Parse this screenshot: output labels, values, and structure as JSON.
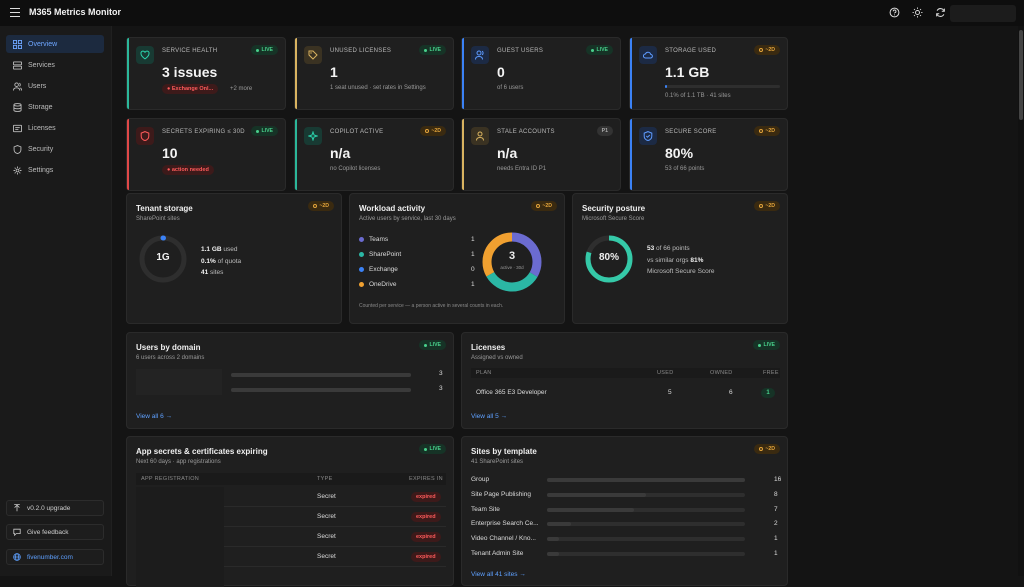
{
  "app": {
    "title": "M365 Metrics Monitor"
  },
  "sidebar": {
    "items": [
      {
        "label": "Overview",
        "icon": "grid-icon"
      },
      {
        "label": "Services",
        "icon": "server-icon"
      },
      {
        "label": "Users",
        "icon": "users-icon"
      },
      {
        "label": "Storage",
        "icon": "database-icon"
      },
      {
        "label": "Licenses",
        "icon": "license-icon"
      },
      {
        "label": "Security",
        "icon": "shield-icon"
      },
      {
        "label": "Settings",
        "icon": "gear-icon"
      }
    ],
    "upgrade": "v0.2.0 upgrade",
    "feedback": "Give feedback",
    "site": "fivenumber.com"
  },
  "kpis": [
    {
      "label": "SERVICE HEALTH",
      "value": "3 issues",
      "badge": "LIVE",
      "pill": "● Exchange Onl...",
      "extra": "+2 more",
      "accent": "#2bb79a"
    },
    {
      "label": "UNUSED LICENSES",
      "value": "1",
      "badge": "LIVE",
      "sub": "1 seat unused · set rates in Settings",
      "accent": "#d9b360"
    },
    {
      "label": "GUEST USERS",
      "value": "0",
      "badge": "LIVE",
      "sub": "of 6 users",
      "accent": "#3b82f6"
    },
    {
      "label": "STORAGE USED",
      "value": "1.1 GB",
      "badge": "~2D",
      "sub": "0.1% of 1.1 TB · 41 sites",
      "accent": "#3b82f6"
    },
    {
      "label": "SECRETS EXPIRING ≤ 30D",
      "value": "10",
      "badge": "LIVE",
      "pill": "● action needed",
      "accent": "#e04848"
    },
    {
      "label": "COPILOT ACTIVE",
      "value": "n/a",
      "badge": "~2D",
      "sub": "no Copilot licenses",
      "accent": "#2bb79a"
    },
    {
      "label": "STALE ACCOUNTS",
      "value": "n/a",
      "badge": "P1",
      "sub": "needs Entra ID P1",
      "accent": "#d9b360"
    },
    {
      "label": "SECURE SCORE",
      "value": "80%",
      "badge": "~2D",
      "sub": "53 of 66 points",
      "accent": "#3b82f6"
    }
  ],
  "storage_card": {
    "title": "Tenant storage",
    "sub": "SharePoint sites",
    "badge": "~2D",
    "donut": "1G",
    "used_val": "1.1 GB",
    "used_lbl": " used",
    "quota_val": "0.1%",
    "quota_lbl": " of quota",
    "sites_val": "41",
    "sites_lbl": " sites",
    "fraction": 0.001
  },
  "workload": {
    "title": "Workload activity",
    "sub": "Active users by service, last 30 days",
    "badge": "~2D",
    "services": [
      {
        "name": "Teams",
        "value": "1",
        "color": "#6b6bd0"
      },
      {
        "name": "SharePoint",
        "value": "1",
        "color": "#2bb7a5"
      },
      {
        "name": "Exchange",
        "value": "0",
        "color": "#3b82f6"
      },
      {
        "name": "OneDrive",
        "value": "1",
        "color": "#f0a030"
      }
    ],
    "center": "3",
    "center_sub": "active · 30d",
    "note": "Counted per service — a person active in several counts in each."
  },
  "posture": {
    "title": "Security posture",
    "sub": "Microsoft Secure Score",
    "badge": "~2D",
    "center": "80%",
    "line1a": "53",
    "line1b": " of 66 points",
    "line2a": "vs similar orgs ",
    "line2b": "81%",
    "line3": "Microsoft Secure Score",
    "fraction": 0.8
  },
  "domains": {
    "title": "Users by domain",
    "sub": "6 users across 2 domains",
    "badge": "LIVE",
    "rows": [
      {
        "value": "3",
        "fraction": 1
      },
      {
        "value": "3",
        "fraction": 1
      }
    ],
    "link": "View all 6 →"
  },
  "licenses": {
    "title": "Licenses",
    "sub": "Assigned vs owned",
    "badge": "LIVE",
    "headers": [
      "PLAN",
      "USED",
      "OWNED",
      "FREE"
    ],
    "rows": [
      {
        "plan": "Office 365 E3 Developer",
        "used": "5",
        "owned": "6",
        "free": "1"
      }
    ],
    "link": "View all 5 →"
  },
  "secrets": {
    "title": "App secrets & certificates expiring",
    "sub": "Next 60 days · app registrations",
    "badge": "LIVE",
    "headers": [
      "APP REGISTRATION",
      "TYPE",
      "EXPIRES IN"
    ],
    "rows": [
      {
        "type": "Secret",
        "status": "expired"
      },
      {
        "type": "Secret",
        "status": "expired"
      },
      {
        "type": "Secret",
        "status": "expired"
      },
      {
        "type": "Secret",
        "status": "expired"
      }
    ]
  },
  "templates": {
    "title": "Sites by template",
    "sub": "41 SharePoint sites",
    "badge": "~2D",
    "rows": [
      {
        "name": "Group",
        "value": "16",
        "fraction": 1
      },
      {
        "name": "Site Page Publishing",
        "value": "8",
        "fraction": 0.5
      },
      {
        "name": "Team Site",
        "value": "7",
        "fraction": 0.44
      },
      {
        "name": "Enterprise Search Ce...",
        "value": "2",
        "fraction": 0.12
      },
      {
        "name": "Video Channel / Kno...",
        "value": "1",
        "fraction": 0.06
      },
      {
        "name": "Tenant Admin Site",
        "value": "1",
        "fraction": 0.06
      }
    ],
    "link": "View all 41 sites →"
  }
}
